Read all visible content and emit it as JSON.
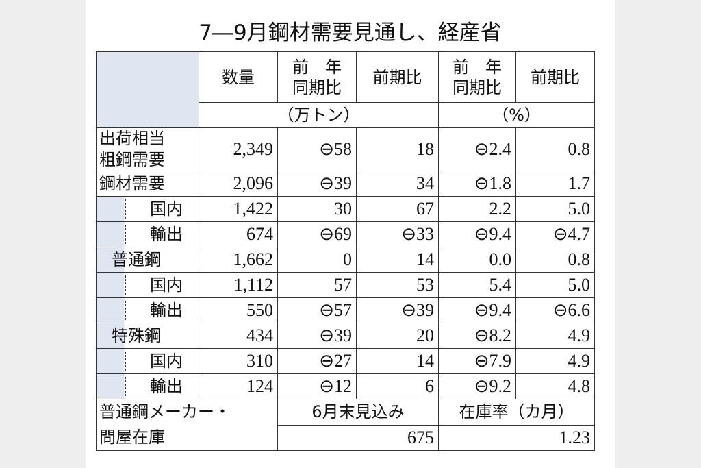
{
  "title": "7―9月鋼材需要見通し、経産省",
  "table": {
    "header": [
      {
        "lines": [
          "数量"
        ]
      },
      {
        "lines": [
          "前　年",
          "同期比"
        ]
      },
      {
        "lines": [
          "前期比"
        ]
      },
      {
        "lines": [
          "前　年",
          "同期比"
        ]
      },
      {
        "lines": [
          "前期比"
        ]
      }
    ],
    "units": [
      "（万トン）",
      "（%）"
    ],
    "groups": [
      {
        "label": [
          "出荷相当",
          "粗鋼需要"
        ],
        "values": [
          "2,349",
          "⊖58",
          "18",
          "⊖2.4",
          "0.8"
        ]
      },
      {
        "label": [
          "鋼材需要"
        ],
        "values": [
          "2,096",
          "⊖39",
          "34",
          "⊖1.8",
          "1.7"
        ],
        "children": [
          {
            "label": [
              "国内"
            ],
            "values": [
              "1,422",
              "30",
              "67",
              "2.2",
              "5.0"
            ]
          },
          {
            "label": [
              "輸出"
            ],
            "values": [
              "674",
              "⊖69",
              "⊖33",
              "⊖9.4",
              "⊖4.7"
            ]
          },
          {
            "label": [
              "普通鋼"
            ],
            "values": [
              "1,662",
              "0",
              "14",
              "0.0",
              "0.8"
            ],
            "children": [
              {
                "label": [
                  "国内"
                ],
                "values": [
                  "1,112",
                  "57",
                  "53",
                  "5.4",
                  "5.0"
                ]
              },
              {
                "label": [
                  "輸出"
                ],
                "values": [
                  "550",
                  "⊖57",
                  "⊖39",
                  "⊖9.4",
                  "⊖6.6"
                ]
              }
            ]
          },
          {
            "label": [
              "特殊鋼"
            ],
            "values": [
              "434",
              "⊖39",
              "20",
              "⊖8.2",
              "4.9"
            ],
            "children": [
              {
                "label": [
                  "国内"
                ],
                "values": [
                  "310",
                  "⊖27",
                  "14",
                  "⊖7.9",
                  "4.9"
                ]
              },
              {
                "label": [
                  "輸出"
                ],
                "values": [
                  "124",
                  "⊖12",
                  "6",
                  "⊖9.2",
                  "4.8"
                ]
              }
            ]
          }
        ]
      }
    ],
    "footer": {
      "label": [
        "普通鋼メーカー・",
        "問屋在庫"
      ],
      "columns": [
        "6月末見込み",
        "在庫率（カ月）"
      ],
      "values": [
        "675",
        "1.23"
      ]
    }
  }
}
